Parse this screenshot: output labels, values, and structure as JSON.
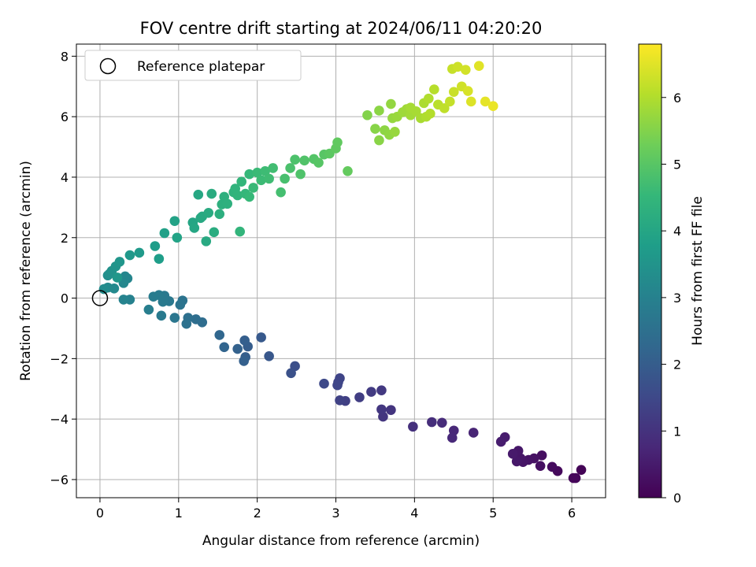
{
  "chart_data": {
    "type": "scatter",
    "title": "FOV centre drift starting at 2024/06/11 04:20:20",
    "xlabel": "Angular distance from reference (arcmin)",
    "ylabel": "Rotation from reference (arcmin)",
    "xlim": [
      -0.3,
      6.43
    ],
    "ylim": [
      -6.6,
      8.4
    ],
    "xticks": [
      0,
      1,
      2,
      3,
      4,
      5,
      6
    ],
    "yticks": [
      -6,
      -4,
      -2,
      0,
      2,
      4,
      6,
      8
    ],
    "grid": true,
    "legend": {
      "position": "top-left",
      "entries": [
        "Reference platepar"
      ]
    },
    "reference_point": {
      "x": 0,
      "y": 0
    },
    "colorbar": {
      "label": "Hours from first FF file",
      "range": [
        0,
        6.8
      ],
      "ticks": [
        0,
        1,
        2,
        3,
        4,
        5,
        6
      ],
      "colormap": "viridis"
    },
    "colormap_stops": [
      "#440154",
      "#482878",
      "#3e4989",
      "#31688e",
      "#26828e",
      "#1f9e89",
      "#35b779",
      "#6ece58",
      "#b5de2b",
      "#fde725"
    ],
    "points": [
      [
        6.12,
        -5.68,
        0.05
      ],
      [
        6.05,
        -5.95,
        0.08
      ],
      [
        6.02,
        -5.95,
        0.1
      ],
      [
        5.82,
        -5.72,
        0.15
      ],
      [
        5.75,
        -5.58,
        0.2
      ],
      [
        5.62,
        -5.2,
        0.25
      ],
      [
        5.6,
        -5.55,
        0.28
      ],
      [
        5.52,
        -5.3,
        0.32
      ],
      [
        5.45,
        -5.35,
        0.35
      ],
      [
        5.38,
        -5.42,
        0.38
      ],
      [
        5.35,
        -5.3,
        0.4
      ],
      [
        5.32,
        -5.05,
        0.42
      ],
      [
        5.3,
        -5.4,
        0.45
      ],
      [
        5.25,
        -5.15,
        0.48
      ],
      [
        5.15,
        -4.6,
        0.52
      ],
      [
        5.1,
        -4.75,
        0.55
      ],
      [
        4.75,
        -4.45,
        0.7
      ],
      [
        4.5,
        -4.38,
        0.75
      ],
      [
        4.48,
        -4.62,
        0.78
      ],
      [
        4.35,
        -4.12,
        0.85
      ],
      [
        4.22,
        -4.1,
        0.9
      ],
      [
        3.98,
        -4.25,
        0.95
      ],
      [
        3.7,
        -3.7,
        1.05
      ],
      [
        3.6,
        -3.92,
        1.08
      ],
      [
        3.58,
        -3.68,
        1.1
      ],
      [
        3.58,
        -3.05,
        1.15
      ],
      [
        3.45,
        -3.1,
        1.2
      ],
      [
        3.3,
        -3.28,
        1.25
      ],
      [
        3.12,
        -3.4,
        1.3
      ],
      [
        3.05,
        -3.38,
        1.35
      ],
      [
        3.05,
        -2.65,
        1.4
      ],
      [
        3.03,
        -2.78,
        1.42
      ],
      [
        3.02,
        -2.88,
        1.45
      ],
      [
        2.85,
        -2.83,
        1.5
      ],
      [
        2.48,
        -2.25,
        1.65
      ],
      [
        2.43,
        -2.48,
        1.7
      ],
      [
        2.15,
        -1.92,
        1.85
      ],
      [
        2.05,
        -1.3,
        1.9
      ],
      [
        1.88,
        -1.6,
        2.0
      ],
      [
        1.85,
        -1.95,
        2.02
      ],
      [
        1.84,
        -1.4,
        2.05
      ],
      [
        1.83,
        -2.08,
        2.08
      ],
      [
        1.75,
        -1.68,
        2.12
      ],
      [
        1.58,
        -1.62,
        2.2
      ],
      [
        1.52,
        -1.22,
        2.25
      ],
      [
        1.3,
        -0.8,
        2.4
      ],
      [
        1.22,
        -0.7,
        2.45
      ],
      [
        1.12,
        -0.65,
        2.5
      ],
      [
        1.1,
        -0.85,
        2.52
      ],
      [
        1.05,
        -0.08,
        2.6
      ],
      [
        1.02,
        -0.22,
        2.62
      ],
      [
        0.95,
        -0.65,
        2.68
      ],
      [
        0.88,
        -0.1,
        2.72
      ],
      [
        0.82,
        0.08,
        2.75
      ],
      [
        0.8,
        -0.12,
        2.78
      ],
      [
        0.78,
        -0.58,
        2.8
      ],
      [
        0.75,
        0.1,
        2.82
      ],
      [
        0.68,
        0.05,
        2.86
      ],
      [
        0.62,
        -0.38,
        2.9
      ],
      [
        0.38,
        -0.05,
        3.0
      ],
      [
        0.3,
        -0.05,
        3.05
      ],
      [
        0.35,
        0.65,
        3.1
      ],
      [
        0.32,
        0.72,
        3.12
      ],
      [
        0.3,
        0.5,
        3.15
      ],
      [
        0.18,
        0.32,
        3.2
      ],
      [
        0.1,
        0.35,
        3.25
      ],
      [
        0.05,
        0.3,
        3.3
      ],
      [
        0.1,
        0.75,
        3.35
      ],
      [
        0.12,
        0.8,
        3.4
      ],
      [
        0.15,
        0.9,
        3.45
      ],
      [
        0.2,
        1.05,
        3.5
      ],
      [
        0.25,
        1.2,
        3.55
      ],
      [
        0.22,
        0.68,
        3.58
      ],
      [
        0.38,
        1.42,
        3.62
      ],
      [
        0.5,
        1.5,
        3.68
      ],
      [
        0.7,
        1.72,
        3.75
      ],
      [
        0.75,
        1.3,
        3.78
      ],
      [
        0.82,
        2.15,
        3.85
      ],
      [
        0.95,
        2.55,
        3.9
      ],
      [
        0.98,
        2.0,
        3.92
      ],
      [
        1.18,
        2.5,
        4.0
      ],
      [
        1.2,
        2.32,
        4.02
      ],
      [
        1.25,
        3.42,
        4.05
      ],
      [
        1.28,
        2.65,
        4.08
      ],
      [
        1.3,
        2.7,
        4.1
      ],
      [
        1.35,
        1.88,
        4.12
      ],
      [
        1.38,
        2.82,
        4.15
      ],
      [
        1.42,
        3.45,
        4.18
      ],
      [
        1.45,
        2.18,
        4.2
      ],
      [
        1.52,
        2.78,
        4.25
      ],
      [
        1.55,
        3.1,
        4.28
      ],
      [
        1.58,
        3.35,
        4.3
      ],
      [
        1.62,
        3.12,
        4.32
      ],
      [
        1.7,
        3.5,
        4.38
      ],
      [
        1.72,
        3.62,
        4.4
      ],
      [
        1.75,
        3.4,
        4.42
      ],
      [
        1.78,
        2.2,
        4.45
      ],
      [
        1.8,
        3.85,
        4.48
      ],
      [
        1.85,
        3.45,
        4.5
      ],
      [
        1.9,
        4.1,
        4.52
      ],
      [
        1.9,
        3.35,
        4.55
      ],
      [
        1.95,
        3.65,
        4.58
      ],
      [
        2.0,
        4.15,
        4.6
      ],
      [
        2.05,
        3.9,
        4.62
      ],
      [
        2.1,
        4.2,
        4.65
      ],
      [
        2.15,
        3.95,
        4.68
      ],
      [
        2.2,
        4.3,
        4.7
      ],
      [
        2.3,
        3.5,
        4.75
      ],
      [
        2.35,
        3.95,
        4.78
      ],
      [
        2.42,
        4.3,
        4.82
      ],
      [
        2.48,
        4.58,
        4.85
      ],
      [
        2.55,
        4.1,
        4.88
      ],
      [
        2.6,
        4.55,
        4.9
      ],
      [
        2.72,
        4.6,
        4.95
      ],
      [
        2.78,
        4.48,
        4.98
      ],
      [
        2.85,
        4.75,
        5.0
      ],
      [
        2.92,
        4.78,
        5.05
      ],
      [
        3.0,
        4.95,
        5.1
      ],
      [
        3.02,
        5.15,
        5.12
      ],
      [
        3.15,
        4.2,
        5.15
      ],
      [
        3.4,
        6.05,
        5.5
      ],
      [
        3.5,
        5.6,
        5.55
      ],
      [
        3.55,
        5.22,
        5.58
      ],
      [
        3.55,
        6.2,
        5.6
      ],
      [
        3.62,
        5.55,
        5.62
      ],
      [
        3.68,
        5.4,
        5.65
      ],
      [
        3.7,
        6.42,
        5.68
      ],
      [
        3.72,
        5.95,
        5.7
      ],
      [
        3.75,
        5.5,
        5.72
      ],
      [
        3.78,
        6.0,
        5.75
      ],
      [
        3.85,
        6.15,
        5.8
      ],
      [
        3.9,
        6.25,
        5.82
      ],
      [
        3.95,
        6.05,
        5.85
      ],
      [
        3.95,
        6.3,
        5.88
      ],
      [
        4.02,
        6.18,
        5.9
      ],
      [
        4.08,
        5.95,
        5.92
      ],
      [
        4.12,
        6.45,
        5.95
      ],
      [
        4.15,
        6.0,
        5.98
      ],
      [
        4.18,
        6.6,
        6.0
      ],
      [
        4.2,
        6.1,
        6.02
      ],
      [
        4.25,
        6.9,
        6.05
      ],
      [
        4.3,
        6.4,
        6.1
      ],
      [
        4.38,
        6.28,
        6.15
      ],
      [
        4.45,
        6.5,
        6.2
      ],
      [
        4.48,
        7.58,
        6.22
      ],
      [
        4.5,
        6.82,
        6.25
      ],
      [
        4.55,
        7.65,
        6.3
      ],
      [
        4.6,
        7.0,
        6.32
      ],
      [
        4.65,
        7.55,
        6.35
      ],
      [
        4.68,
        6.85,
        6.4
      ],
      [
        4.72,
        6.5,
        6.45
      ],
      [
        4.82,
        7.68,
        6.5
      ],
      [
        4.9,
        6.5,
        6.55
      ],
      [
        5.0,
        6.35,
        6.6
      ]
    ]
  }
}
